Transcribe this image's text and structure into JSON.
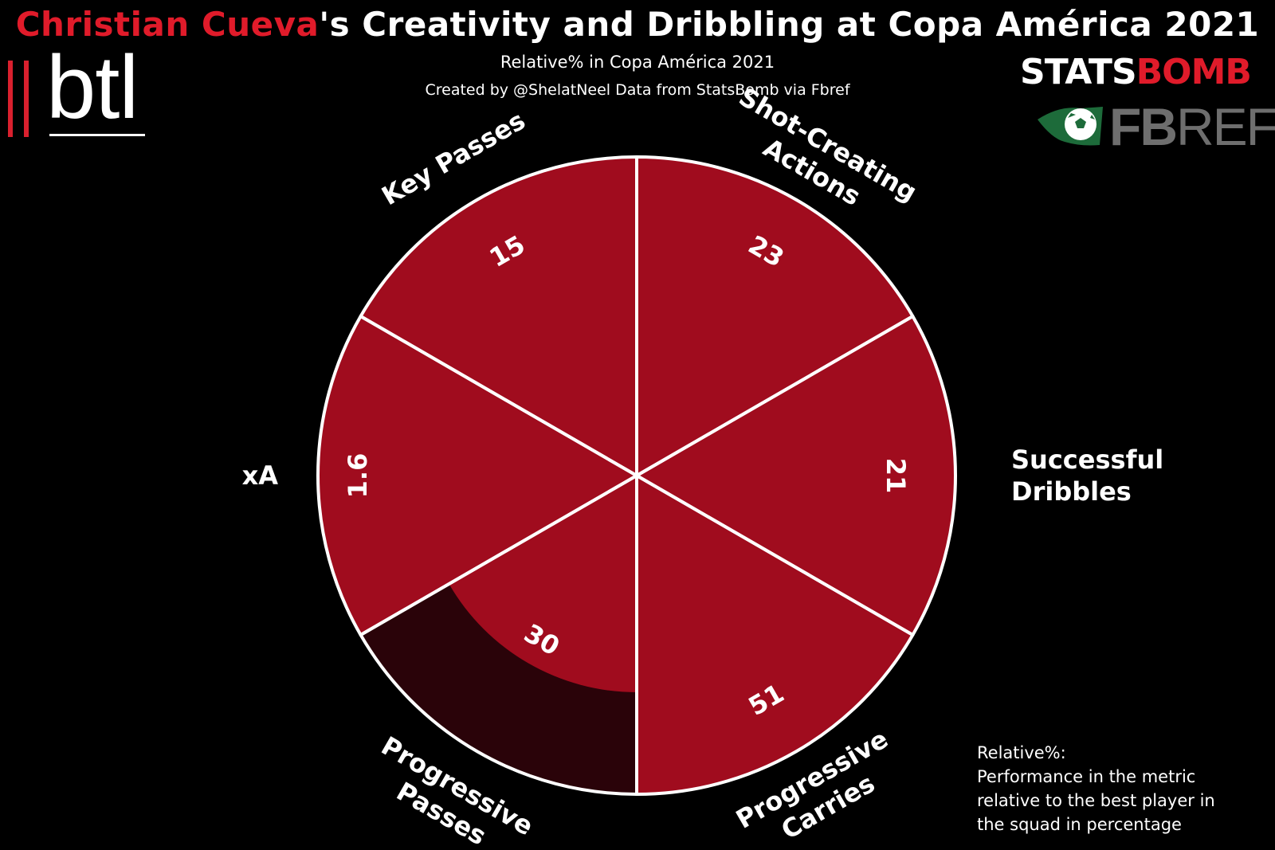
{
  "header": {
    "title_player": "Christian Cueva",
    "title_rest": "'s Creativity and Dribbling at Copa América 2021",
    "subtitle": "Relative% in Copa América 2021",
    "credit": "Created by @ShelatNeel  Data from StatsBomb via Fbref"
  },
  "logos": {
    "btl": "btl",
    "statsbomb_stats": "STATS",
    "statsbomb_bomb": "BOMB",
    "fbref_fb": "FB",
    "fbref_ref": "REF"
  },
  "note": {
    "heading": "Relative%:",
    "line1": "Performance in the metric",
    "line2": "relative to the best player in",
    "line3": "the squad in percentage"
  },
  "colors": {
    "background": "#000000",
    "accent_red": "#e01b2a",
    "slice_fill": "#a00c1e",
    "slice_background": "#2a0309",
    "slice_edge": "#ffffff"
  },
  "chart_data": {
    "type": "pie",
    "variant": "polar-area (radial bar)",
    "relative_max": 100,
    "categories": [
      "Shot-Creating Actions",
      "Successful Dribbles",
      "Progressive Carries",
      "Progressive Passes",
      "xA",
      "Key Passes"
    ],
    "value_labels": [
      "23",
      "21",
      "51",
      "30",
      "1.6",
      "15"
    ],
    "relative_percent": [
      100,
      100,
      100,
      68,
      100,
      100
    ],
    "grid": false,
    "legend": "none"
  }
}
